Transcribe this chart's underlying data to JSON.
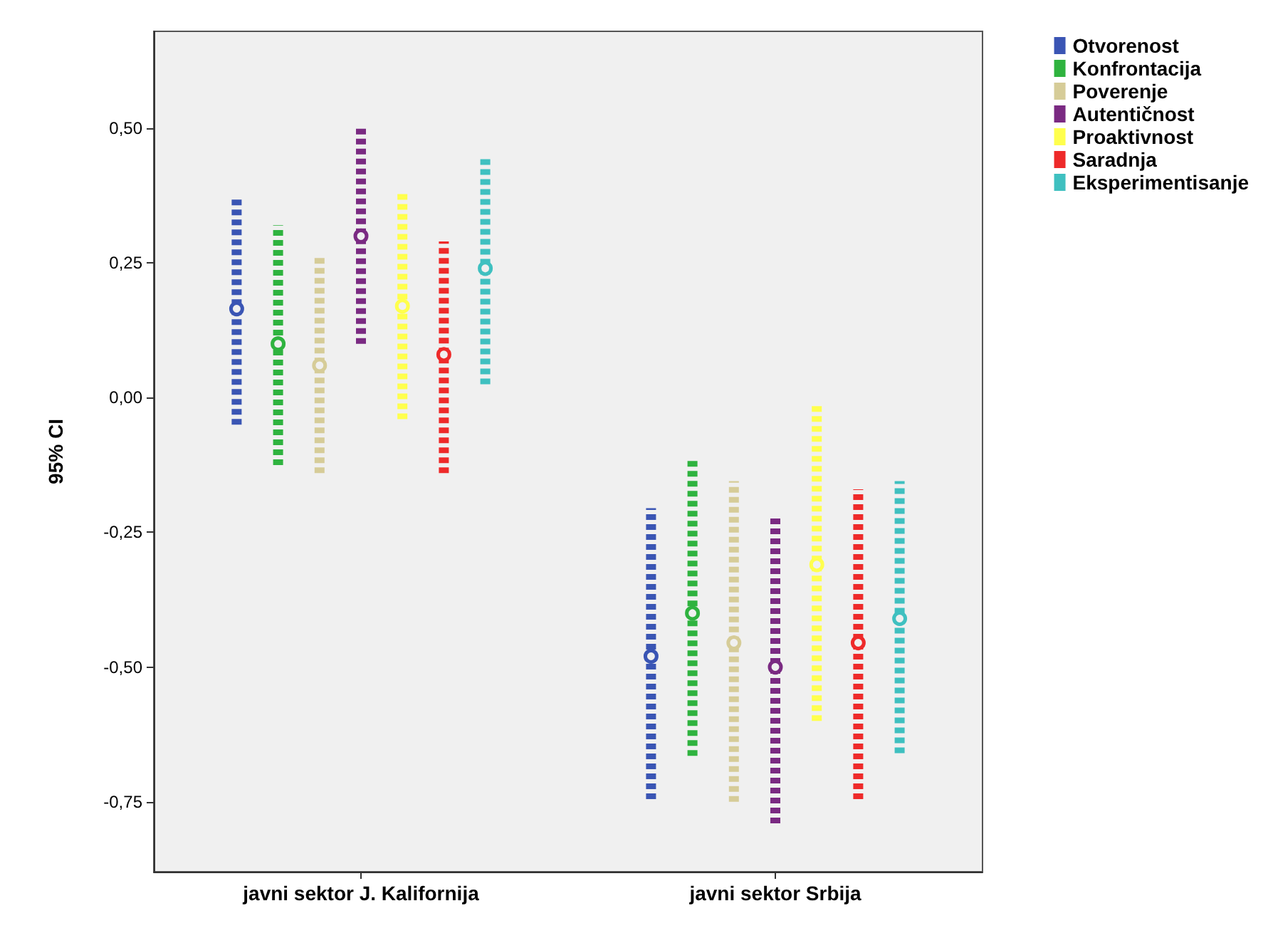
{
  "chart_data": {
    "type": "scatter",
    "ylabel": "95% CI",
    "categories": [
      "javni sektor J. Kalifornija",
      "javni sektor Srbija"
    ],
    "series": [
      {
        "name": "Otvorenost",
        "color": "#3a55b4",
        "values": [
          0.165,
          -0.48
        ],
        "errors": [
          [
            -0.05,
            0.37
          ],
          [
            -0.745,
            -0.205
          ]
        ]
      },
      {
        "name": "Konfrontacija",
        "color": "#2fb33f",
        "values": [
          0.1,
          -0.4
        ],
        "errors": [
          [
            -0.125,
            0.32
          ],
          [
            -0.665,
            -0.115
          ]
        ]
      },
      {
        "name": "Poverenje",
        "color": "#d6cc98",
        "values": [
          0.06,
          -0.455
        ],
        "errors": [
          [
            -0.14,
            0.26
          ],
          [
            -0.75,
            -0.155
          ]
        ]
      },
      {
        "name": "Autentičnost",
        "color": "#7a2a82",
        "values": [
          0.3,
          -0.5
        ],
        "errors": [
          [
            0.1,
            0.5
          ],
          [
            -0.79,
            -0.22
          ]
        ]
      },
      {
        "name": "Proaktivnost",
        "color": "#ffff4d",
        "values": [
          0.17,
          -0.31
        ],
        "errors": [
          [
            -0.04,
            0.38
          ],
          [
            -0.6,
            -0.015
          ]
        ]
      },
      {
        "name": "Saradnja",
        "color": "#ee2a2a",
        "values": [
          0.08,
          -0.455
        ],
        "errors": [
          [
            -0.14,
            0.29
          ],
          [
            -0.745,
            -0.17
          ]
        ]
      },
      {
        "name": "Eksperimentisanje",
        "color": "#3fc0c0",
        "values": [
          0.24,
          -0.41
        ],
        "errors": [
          [
            0.025,
            0.45
          ],
          [
            -0.66,
            -0.155
          ]
        ]
      }
    ],
    "ylim": [
      -0.88,
      0.68
    ],
    "yticks": [
      {
        "value": -0.75,
        "label": "-0,75"
      },
      {
        "value": -0.5,
        "label": "-0,50"
      },
      {
        "value": -0.25,
        "label": "-0,25"
      },
      {
        "value": 0,
        "label": "0,00"
      },
      {
        "value": 0.25,
        "label": "0,25"
      },
      {
        "value": 0.5,
        "label": "0,50"
      }
    ],
    "grid": false,
    "legend": "top right",
    "marker": "circle"
  }
}
